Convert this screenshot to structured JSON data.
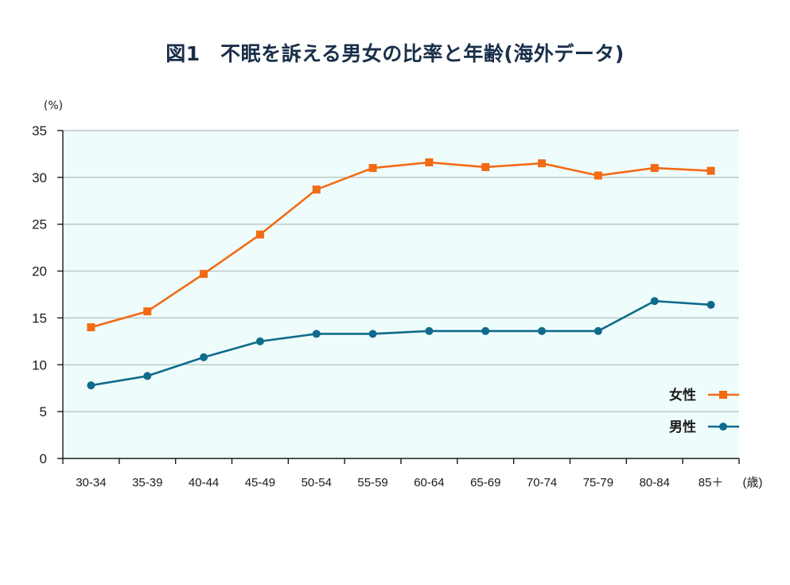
{
  "chart_data": {
    "type": "line",
    "title": "図1　不眠を訴える男女の比率と年齢(海外データ)",
    "ylabel": "(%)",
    "xlabel": "(歳)",
    "ylim": [
      0,
      35
    ],
    "yticks": [
      0,
      5,
      10,
      15,
      20,
      25,
      30,
      35
    ],
    "grid": true,
    "legend_position": "right",
    "categories": [
      "30-34",
      "35-39",
      "40-44",
      "45-49",
      "50-54",
      "55-59",
      "60-64",
      "65-69",
      "70-74",
      "75-79",
      "80-84",
      "85＋"
    ],
    "series": [
      {
        "name": "女性",
        "color": "#f26b14",
        "marker": "square",
        "values": [
          14.0,
          15.7,
          19.7,
          23.9,
          28.7,
          31.0,
          31.6,
          31.1,
          31.5,
          30.2,
          31.0,
          30.7
        ]
      },
      {
        "name": "男性",
        "color": "#0f6b8c",
        "marker": "circle",
        "values": [
          7.8,
          8.8,
          10.8,
          12.5,
          13.3,
          13.3,
          13.6,
          13.6,
          13.6,
          13.6,
          16.8,
          16.4
        ]
      }
    ],
    "colors": {
      "plot_background": "#effcfc",
      "gridline": "#b9c6c6",
      "axis": "#1a1a1a"
    }
  }
}
